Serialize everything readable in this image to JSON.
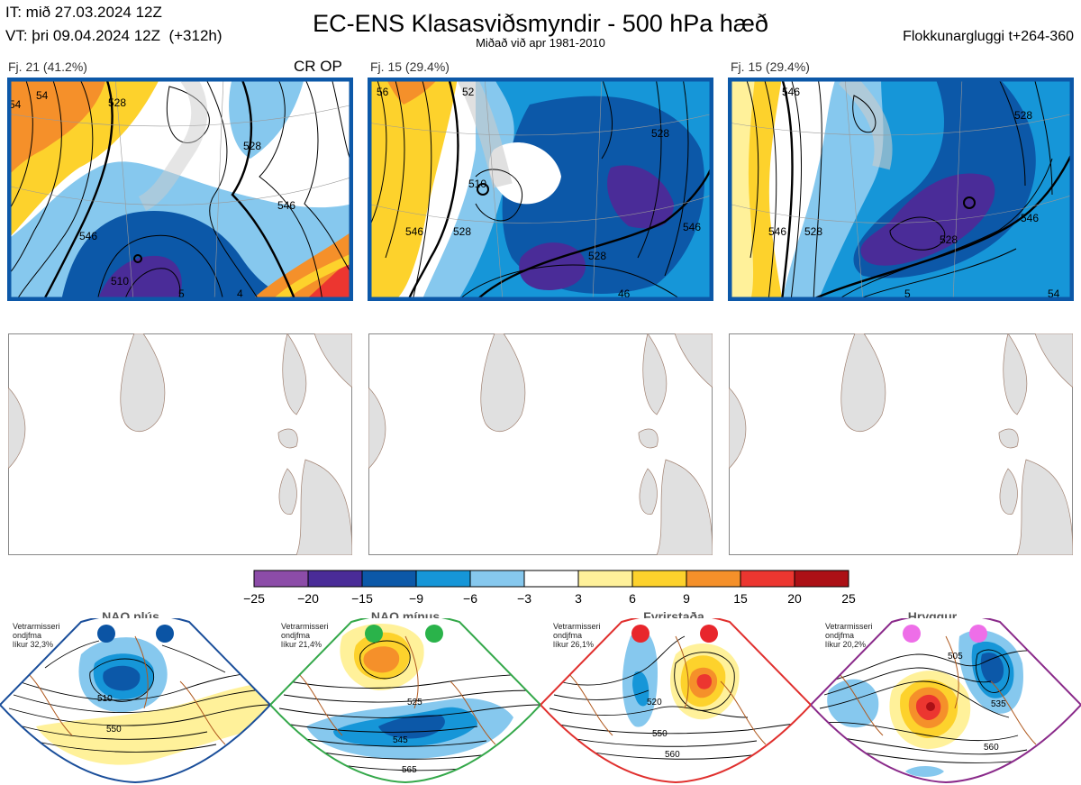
{
  "header": {
    "it": "IT: mið 27.03.2024 12Z",
    "vt": "VT: þri 09.04.2024 12Z  (+312h)",
    "title": "EC-ENS Klasasviðsmyndir - 500 hPa hæð",
    "subtitle": "Miðað við apr 1981-2010",
    "window": "Flokkunargluggi t+264-360"
  },
  "top_panels": [
    {
      "label": "Fj. 21 (41.2%)",
      "marker": "CR OP",
      "contour_labels": [
        "528",
        "546",
        "510",
        "528",
        "546",
        "54",
        "54",
        "5",
        "4"
      ]
    },
    {
      "label": "Fj. 15 (29.4%)",
      "marker": "",
      "contour_labels": [
        "510",
        "528",
        "546",
        "528",
        "528",
        "546",
        "46",
        "52",
        "56"
      ]
    },
    {
      "label": "Fj. 15 (29.4%)",
      "marker": "",
      "contour_labels": [
        "528",
        "546",
        "528",
        "546",
        "528",
        "546",
        "5",
        "54"
      ]
    }
  ],
  "colorbar": {
    "ticks": [
      "−25",
      "−20",
      "−15",
      "−9",
      "−6",
      "−3",
      "3",
      "6",
      "9",
      "15",
      "20",
      "25"
    ],
    "colors": [
      "#8c4ca8",
      "#4a2c98",
      "#0c58a8",
      "#1696d8",
      "#86c8ee",
      "#ffffff",
      "#fff19a",
      "#fdd22c",
      "#f5902a",
      "#ec3630",
      "#ac1016"
    ]
  },
  "regimes": [
    {
      "title": "NAO plús",
      "info": [
        "Vetrarmisseri",
        "ondjfma",
        "líkur 32,3%"
      ],
      "dot_color": "#0b54a4",
      "frame_color": "#1a4e9a",
      "contour_labels": [
        "510",
        "550"
      ]
    },
    {
      "title": "NAO mínus",
      "info": [
        "Vetrarmisseri",
        "ondjfma",
        "líkur 21,4%"
      ],
      "dot_color": "#2ab34a",
      "frame_color": "#34a84a",
      "contour_labels": [
        "525",
        "545",
        "565"
      ]
    },
    {
      "title": "Fyrirstaða",
      "info": [
        "Vetrarmisseri",
        "ondjfma",
        "líkur 26,1%"
      ],
      "dot_color": "#e8262c",
      "frame_color": "#e0302e",
      "contour_labels": [
        "520",
        "550",
        "560"
      ]
    },
    {
      "title": "Hryggur",
      "info": [
        "Vetrarmisseri",
        "ondjfma",
        "líkur 20,2%"
      ],
      "dot_color": "#ee6ee8",
      "frame_color": "#8a2a8a",
      "contour_labels": [
        "505",
        "535",
        "560"
      ]
    }
  ]
}
